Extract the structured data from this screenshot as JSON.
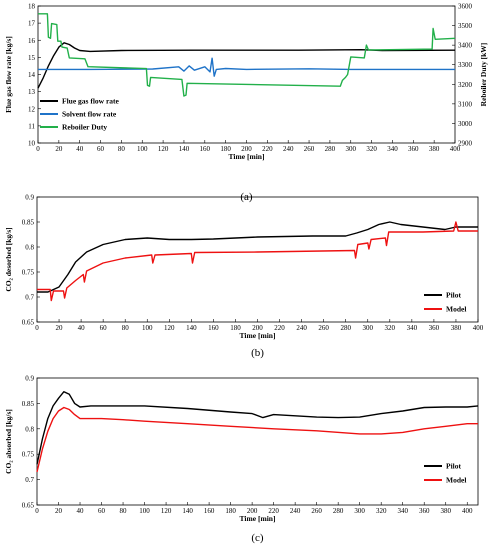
{
  "chart_data": [
    {
      "type": "line",
      "caption": "(a)",
      "xlabel": "Time [min]",
      "ylabel": "Flue gas flow rate [kg/s]",
      "y2label": "Reboiler Duty [kW]",
      "xlim": [
        0,
        400
      ],
      "xticks": [
        0,
        20,
        40,
        60,
        80,
        100,
        120,
        140,
        160,
        180,
        200,
        220,
        240,
        260,
        280,
        300,
        320,
        340,
        360,
        380,
        400
      ],
      "ylim": [
        10,
        18
      ],
      "yticks": [
        10,
        11,
        12,
        13,
        14,
        15,
        16,
        17,
        18
      ],
      "y2lim": [
        2900,
        3600
      ],
      "y2ticks": [
        2900,
        3000,
        3100,
        3200,
        3300,
        3400,
        3500,
        3600
      ],
      "legend_position": "lower-left",
      "series": [
        {
          "name": "Flue gas flow rate",
          "axis": "left",
          "color": "#000000",
          "points": [
            [
              0,
              13.2
            ],
            [
              5,
              13.8
            ],
            [
              10,
              14.5
            ],
            [
              15,
              15.1
            ],
            [
              20,
              15.6
            ],
            [
              25,
              15.85
            ],
            [
              30,
              15.75
            ],
            [
              35,
              15.55
            ],
            [
              40,
              15.4
            ],
            [
              50,
              15.35
            ],
            [
              80,
              15.4
            ],
            [
              150,
              15.42
            ],
            [
              250,
              15.42
            ],
            [
              310,
              15.45
            ],
            [
              330,
              15.4
            ],
            [
              400,
              15.42
            ]
          ]
        },
        {
          "name": "Solvent flow rate",
          "axis": "left",
          "color": "#1f73c8",
          "points": [
            [
              0,
              14.3
            ],
            [
              50,
              14.3
            ],
            [
              110,
              14.32
            ],
            [
              135,
              14.45
            ],
            [
              140,
              14.2
            ],
            [
              145,
              14.5
            ],
            [
              150,
              14.25
            ],
            [
              160,
              14.45
            ],
            [
              165,
              14.15
            ],
            [
              167,
              14.95
            ],
            [
              169,
              13.9
            ],
            [
              171,
              14.3
            ],
            [
              180,
              14.35
            ],
            [
              200,
              14.3
            ],
            [
              260,
              14.33
            ],
            [
              300,
              14.3
            ],
            [
              400,
              14.3
            ]
          ]
        },
        {
          "name": "Reboiler Duty",
          "axis": "right",
          "color": "#22b04a",
          "points": [
            [
              0,
              3560
            ],
            [
              9,
              3560
            ],
            [
              10,
              3440
            ],
            [
              12,
              3435
            ],
            [
              13,
              3510
            ],
            [
              18,
              3505
            ],
            [
              19,
              3420
            ],
            [
              22,
              3420
            ],
            [
              23,
              3390
            ],
            [
              28,
              3385
            ],
            [
              30,
              3335
            ],
            [
              45,
              3330
            ],
            [
              48,
              3290
            ],
            [
              104,
              3280
            ],
            [
              105,
              3195
            ],
            [
              107,
              3190
            ],
            [
              108,
              3235
            ],
            [
              138,
              3225
            ],
            [
              140,
              3140
            ],
            [
              142,
              3145
            ],
            [
              143,
              3205
            ],
            [
              290,
              3190
            ],
            [
              292,
              3220
            ],
            [
              295,
              3235
            ],
            [
              297,
              3250
            ],
            [
              300,
              3340
            ],
            [
              313,
              3335
            ],
            [
              315,
              3400
            ],
            [
              317,
              3375
            ],
            [
              378,
              3380
            ],
            [
              379,
              3485
            ],
            [
              381,
              3430
            ],
            [
              400,
              3435
            ]
          ]
        }
      ]
    },
    {
      "type": "line",
      "caption": "(b)",
      "xlabel": "Time [min]",
      "ylabel": "CO₂ desorbed [kg/s]",
      "xlim": [
        0,
        400
      ],
      "xticks": [
        0,
        20,
        40,
        60,
        80,
        100,
        120,
        140,
        160,
        180,
        200,
        220,
        240,
        260,
        280,
        300,
        320,
        340,
        360,
        380,
        400
      ],
      "ylim": [
        0.65,
        0.9
      ],
      "yticks": [
        0.65,
        0.7,
        0.75,
        0.8,
        0.85,
        0.9
      ],
      "legend_position": "lower-right",
      "series": [
        {
          "name": "Pilot",
          "color": "#000000",
          "points": [
            [
              0,
              0.71
            ],
            [
              10,
              0.71
            ],
            [
              20,
              0.72
            ],
            [
              28,
              0.745
            ],
            [
              35,
              0.77
            ],
            [
              45,
              0.79
            ],
            [
              60,
              0.805
            ],
            [
              80,
              0.815
            ],
            [
              100,
              0.818
            ],
            [
              120,
              0.815
            ],
            [
              140,
              0.815
            ],
            [
              160,
              0.816
            ],
            [
              200,
              0.82
            ],
            [
              250,
              0.822
            ],
            [
              280,
              0.822
            ],
            [
              290,
              0.828
            ],
            [
              300,
              0.835
            ],
            [
              310,
              0.845
            ],
            [
              320,
              0.85
            ],
            [
              330,
              0.845
            ],
            [
              350,
              0.84
            ],
            [
              370,
              0.835
            ],
            [
              380,
              0.84
            ],
            [
              400,
              0.84
            ]
          ]
        },
        {
          "name": "Model",
          "color": "#ee1111",
          "points": [
            [
              0,
              0.715
            ],
            [
              10,
              0.715
            ],
            [
              12,
              0.715
            ],
            [
              13,
              0.693
            ],
            [
              15,
              0.712
            ],
            [
              24,
              0.712
            ],
            [
              25,
              0.698
            ],
            [
              27,
              0.718
            ],
            [
              35,
              0.733
            ],
            [
              42,
              0.745
            ],
            [
              43,
              0.73
            ],
            [
              45,
              0.752
            ],
            [
              60,
              0.768
            ],
            [
              80,
              0.778
            ],
            [
              104,
              0.784
            ],
            [
              105,
              0.768
            ],
            [
              107,
              0.784
            ],
            [
              140,
              0.787
            ],
            [
              141,
              0.768
            ],
            [
              143,
              0.789
            ],
            [
              200,
              0.79
            ],
            [
              288,
              0.793
            ],
            [
              289,
              0.778
            ],
            [
              291,
              0.805
            ],
            [
              300,
              0.808
            ],
            [
              301,
              0.796
            ],
            [
              303,
              0.815
            ],
            [
              316,
              0.818
            ],
            [
              317,
              0.803
            ],
            [
              319,
              0.83
            ],
            [
              350,
              0.83
            ],
            [
              378,
              0.832
            ],
            [
              380,
              0.85
            ],
            [
              382,
              0.832
            ],
            [
              400,
              0.832
            ]
          ]
        }
      ]
    },
    {
      "type": "line",
      "caption": "(c)",
      "xlabel": "Time [min]",
      "ylabel": "CO₂ absorbed [kg/s]",
      "xlim": [
        0,
        410
      ],
      "xticks": [
        0,
        20,
        40,
        60,
        80,
        100,
        120,
        140,
        160,
        180,
        200,
        220,
        240,
        260,
        280,
        300,
        320,
        340,
        360,
        380,
        400
      ],
      "ylim": [
        0.65,
        0.9
      ],
      "yticks": [
        0.65,
        0.7,
        0.75,
        0.8,
        0.85,
        0.9
      ],
      "legend_position": "lower-right",
      "series": [
        {
          "name": "Pilot",
          "color": "#000000",
          "points": [
            [
              0,
              0.73
            ],
            [
              5,
              0.78
            ],
            [
              10,
              0.82
            ],
            [
              15,
              0.845
            ],
            [
              20,
              0.86
            ],
            [
              25,
              0.873
            ],
            [
              30,
              0.868
            ],
            [
              35,
              0.85
            ],
            [
              40,
              0.843
            ],
            [
              50,
              0.845
            ],
            [
              80,
              0.845
            ],
            [
              100,
              0.845
            ],
            [
              140,
              0.84
            ],
            [
              180,
              0.833
            ],
            [
              200,
              0.83
            ],
            [
              210,
              0.822
            ],
            [
              220,
              0.828
            ],
            [
              260,
              0.823
            ],
            [
              280,
              0.822
            ],
            [
              300,
              0.823
            ],
            [
              320,
              0.83
            ],
            [
              340,
              0.835
            ],
            [
              360,
              0.842
            ],
            [
              380,
              0.843
            ],
            [
              400,
              0.843
            ],
            [
              410,
              0.845
            ]
          ]
        },
        {
          "name": "Model",
          "color": "#ee1111",
          "points": [
            [
              0,
              0.715
            ],
            [
              5,
              0.76
            ],
            [
              10,
              0.795
            ],
            [
              15,
              0.82
            ],
            [
              20,
              0.835
            ],
            [
              25,
              0.842
            ],
            [
              30,
              0.838
            ],
            [
              35,
              0.828
            ],
            [
              40,
              0.82
            ],
            [
              60,
              0.82
            ],
            [
              80,
              0.818
            ],
            [
              100,
              0.815
            ],
            [
              140,
              0.81
            ],
            [
              180,
              0.805
            ],
            [
              220,
              0.8
            ],
            [
              260,
              0.796
            ],
            [
              300,
              0.79
            ],
            [
              320,
              0.79
            ],
            [
              340,
              0.793
            ],
            [
              360,
              0.8
            ],
            [
              380,
              0.805
            ],
            [
              400,
              0.81
            ],
            [
              410,
              0.81
            ]
          ]
        }
      ]
    }
  ]
}
